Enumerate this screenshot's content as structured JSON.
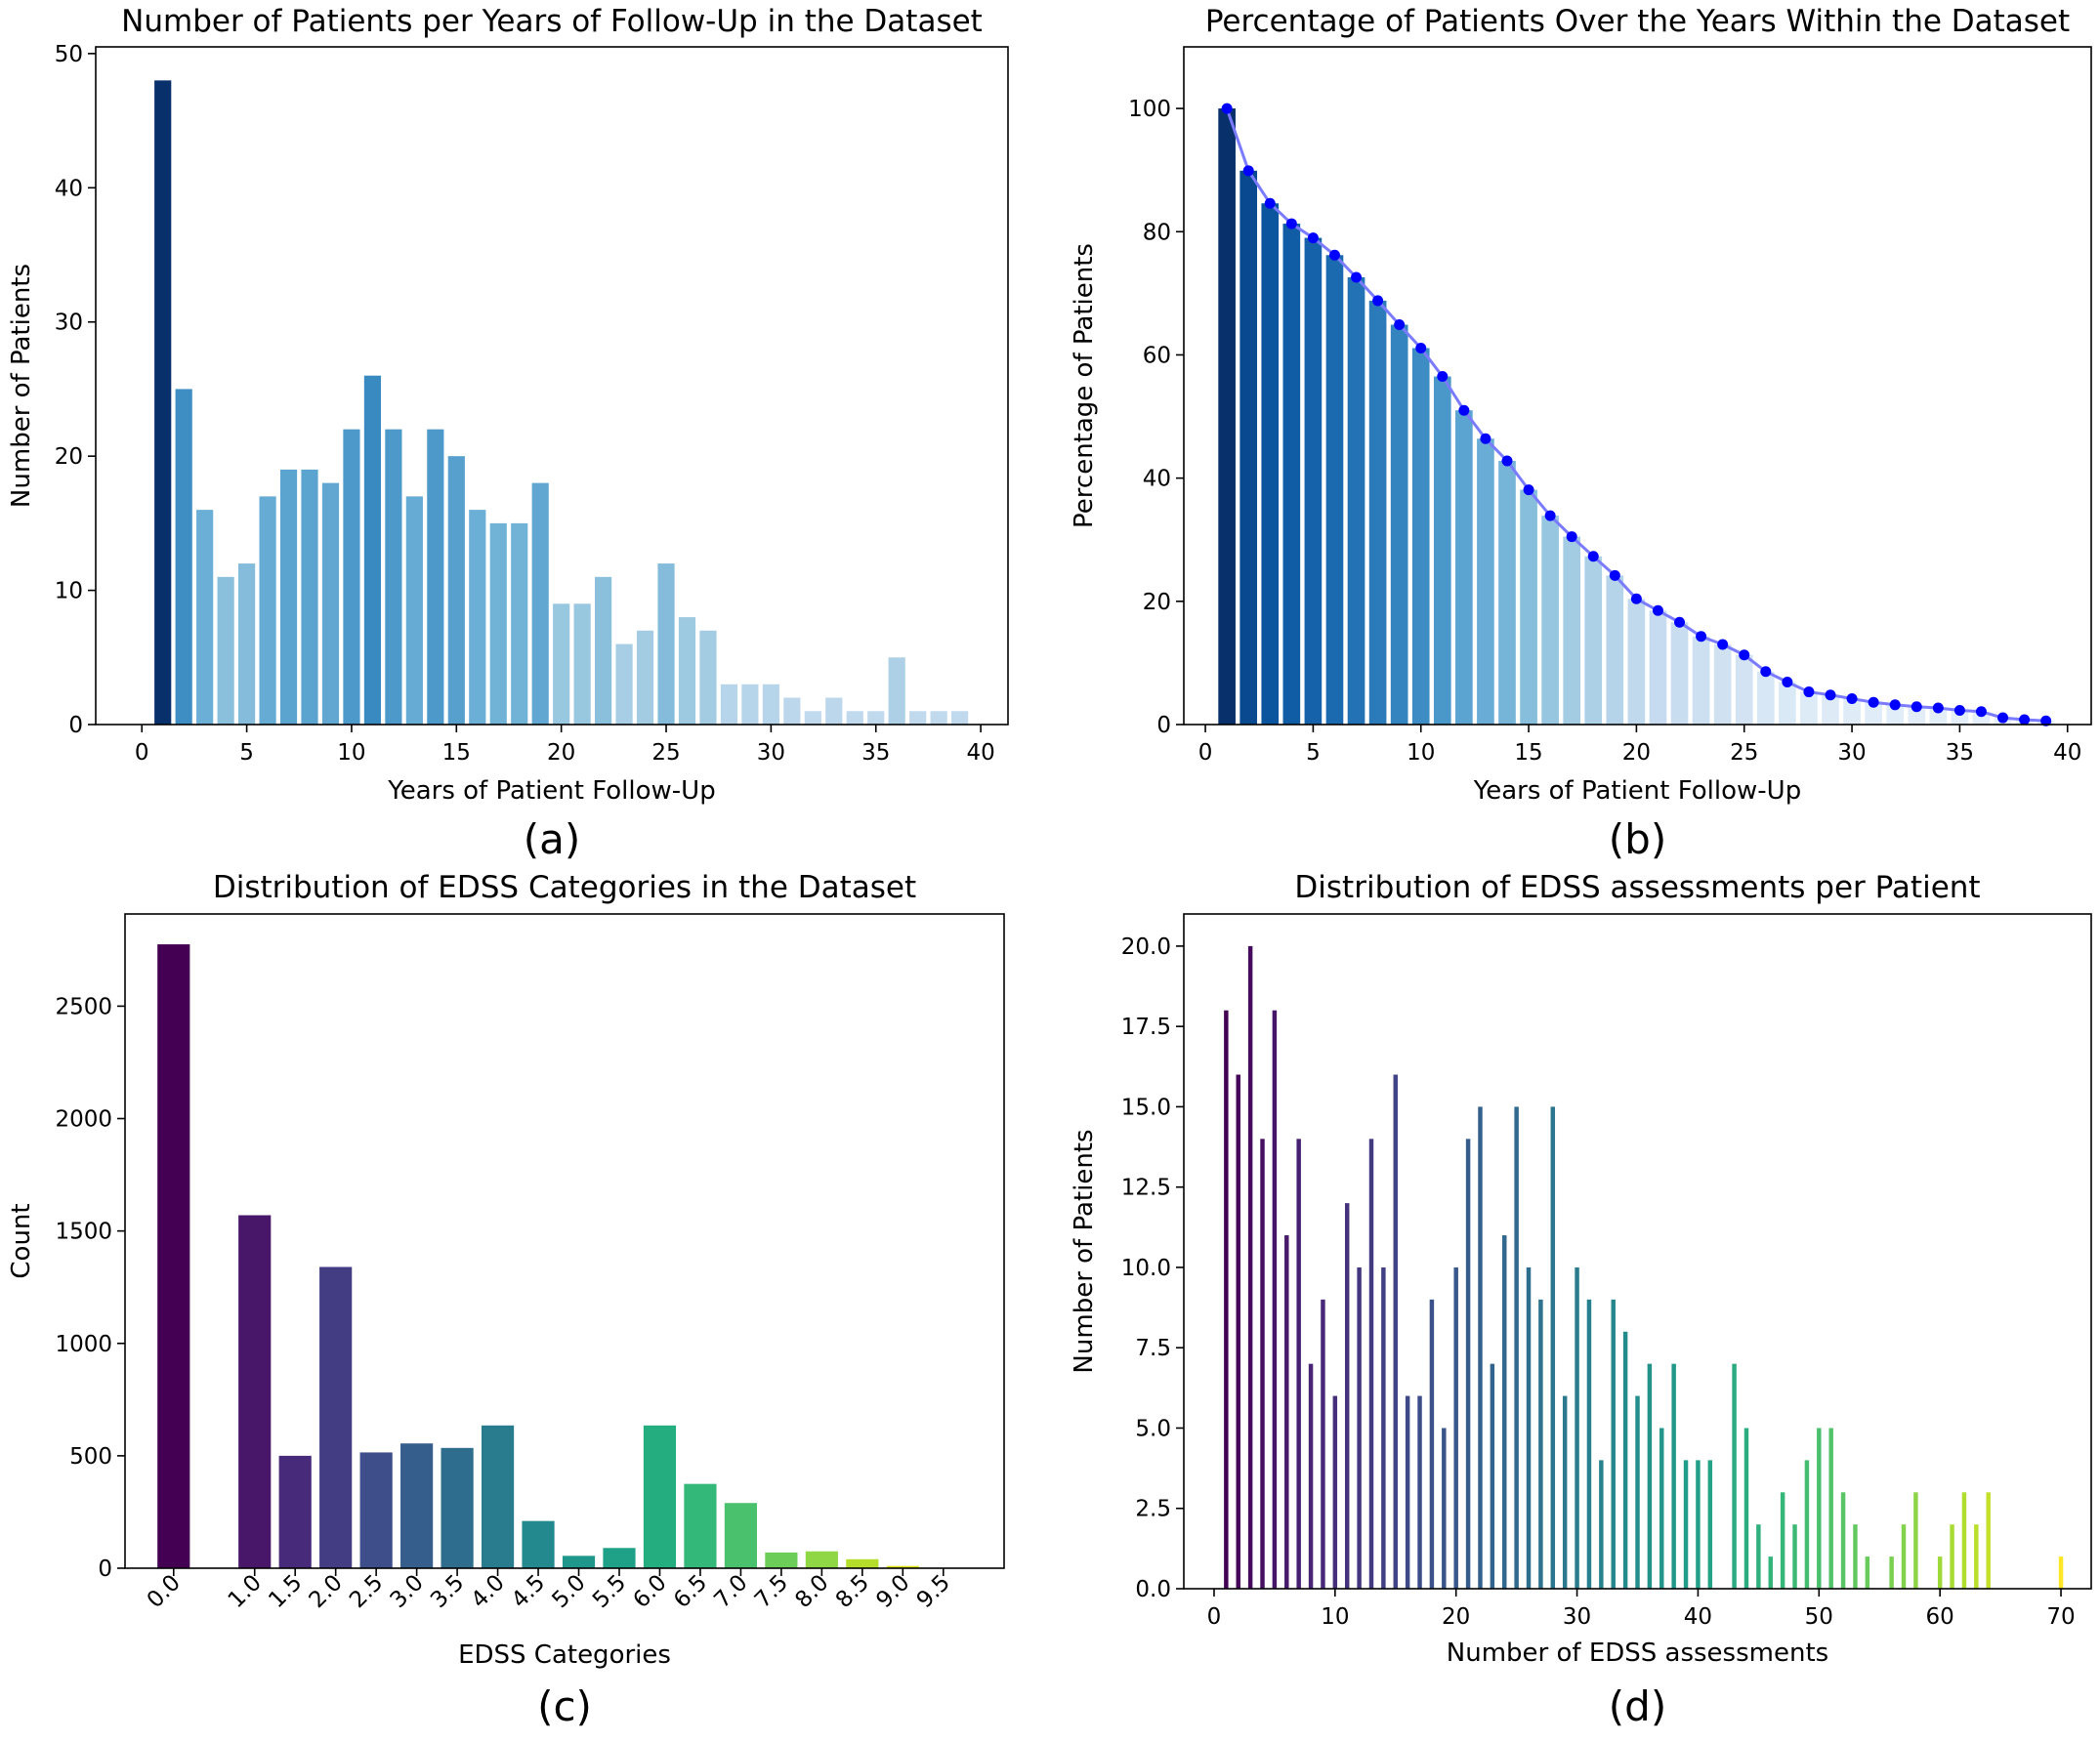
{
  "chart_data": [
    {
      "panel_label": "(a)",
      "type": "bar",
      "title": "Number of Patients per Years of Follow-Up in the Dataset",
      "xlabel": "Years of Patient Follow-Up",
      "ylabel": "Number of Patients",
      "xlim": [
        -2.2,
        41.3
      ],
      "ylim": [
        0,
        50.5
      ],
      "xticks": [
        0,
        5,
        10,
        15,
        20,
        25,
        30,
        35,
        40
      ],
      "yticks": [
        0,
        10,
        20,
        30,
        40,
        50
      ],
      "x": [
        1,
        2,
        3,
        4,
        5,
        6,
        7,
        8,
        9,
        10,
        11,
        12,
        13,
        14,
        15,
        16,
        17,
        18,
        19,
        20,
        21,
        22,
        23,
        24,
        25,
        26,
        27,
        28,
        29,
        30,
        31,
        32,
        33,
        34,
        35,
        36,
        37,
        38,
        39
      ],
      "values": [
        48,
        25,
        16,
        11,
        12,
        17,
        19,
        19,
        18,
        22,
        26,
        22,
        17,
        22,
        20,
        16,
        15,
        15,
        18,
        9,
        9,
        11,
        6,
        7,
        12,
        8,
        7,
        3,
        3,
        3,
        2,
        1,
        2,
        1,
        1,
        5,
        1,
        1,
        1
      ],
      "colormap": "Blues",
      "grid": false
    },
    {
      "panel_label": "(b)",
      "type": "bar",
      "title": "Percentage of Patients Over the Years Within the Dataset",
      "xlabel": "Years of Patient Follow-Up",
      "ylabel": "Percentage of Patients",
      "xlim": [
        -1,
        41.1
      ],
      "ylim": [
        0,
        110
      ],
      "xticks": [
        0,
        5,
        10,
        15,
        20,
        25,
        30,
        35,
        40
      ],
      "yticks": [
        0,
        20,
        40,
        60,
        80,
        100
      ],
      "x": [
        1,
        2,
        3,
        4,
        5,
        6,
        7,
        8,
        9,
        10,
        11,
        12,
        13,
        14,
        15,
        16,
        17,
        18,
        19,
        20,
        21,
        22,
        23,
        24,
        25,
        26,
        27,
        28,
        29,
        30,
        31,
        32,
        33,
        34,
        35,
        36,
        37,
        38,
        39
      ],
      "values": [
        100,
        89.9,
        84.6,
        81.3,
        79,
        76.2,
        72.6,
        68.8,
        64.9,
        61.1,
        56.5,
        51,
        46.4,
        42.8,
        38.1,
        33.9,
        30.5,
        27.3,
        24.2,
        20.4,
        18.5,
        16.6,
        14.3,
        13,
        11.3,
        8.6,
        6.9,
        5.3,
        4.8,
        4.2,
        3.6,
        3.2,
        2.9,
        2.7,
        2.3,
        2.1,
        1.1,
        0.8,
        0.6
      ],
      "colormap": "Blues_r",
      "line_color": "#7b7bff",
      "marker_color": "#0000ff",
      "grid": false
    },
    {
      "panel_label": "(c)",
      "type": "bar",
      "title": "Distribution of EDSS Categories in the Dataset",
      "xlabel": "EDSS Categories",
      "ylabel": "Count",
      "ylim": [
        0,
        2910
      ],
      "yticks": [
        0,
        500,
        1000,
        1500,
        2000,
        2500
      ],
      "categories": [
        "0.0",
        "1.0",
        "1.5",
        "2.0",
        "2.5",
        "3.0",
        "3.5",
        "4.0",
        "4.5",
        "5.0",
        "5.5",
        "6.0",
        "6.5",
        "7.0",
        "7.5",
        "8.0",
        "8.5",
        "9.0",
        "9.5"
      ],
      "values": [
        2775,
        1570,
        500,
        1340,
        515,
        555,
        535,
        635,
        210,
        55,
        90,
        635,
        375,
        290,
        70,
        75,
        40,
        10,
        0
      ],
      "colors": [
        "#440154",
        "#481769",
        "#472a7a",
        "#433d84",
        "#3d4e8a",
        "#355e8d",
        "#2e6d8e",
        "#297b8e",
        "#23898e",
        "#1f978b",
        "#1fa187",
        "#24ae7f",
        "#33b87a",
        "#4ac16d",
        "#6cce59",
        "#8fd744",
        "#b5de2b",
        "#dde318",
        "#fde725"
      ],
      "grid": false
    },
    {
      "panel_label": "(d)",
      "type": "bar",
      "title": "Distribution of EDSS assessments per Patient",
      "xlabel": "Number of EDSS assessments",
      "ylabel": "Number of Patients",
      "xlim": [
        -2.5,
        72.5
      ],
      "ylim": [
        0,
        21
      ],
      "xticks": [
        0,
        10,
        20,
        30,
        40,
        50,
        60,
        70
      ],
      "yticks": [
        "0.0",
        "2.5",
        "5.0",
        "7.5",
        "10.0",
        "12.5",
        "15.0",
        "17.5",
        "20.0"
      ],
      "x": [
        1,
        2,
        3,
        4,
        5,
        6,
        7,
        8,
        9,
        10,
        11,
        12,
        13,
        14,
        15,
        16,
        17,
        18,
        19,
        20,
        21,
        22,
        23,
        24,
        25,
        26,
        27,
        28,
        29,
        30,
        31,
        32,
        33,
        34,
        35,
        36,
        37,
        38,
        39,
        40,
        41,
        43,
        44,
        45,
        46,
        47,
        48,
        49,
        50,
        51,
        52,
        53,
        54,
        56,
        57,
        58,
        60,
        61,
        62,
        63,
        64,
        70
      ],
      "values": [
        18,
        16,
        20,
        14,
        18,
        11,
        14,
        7,
        9,
        6,
        12,
        10,
        14,
        10,
        16,
        6,
        6,
        9,
        5,
        10,
        14,
        15,
        7,
        11,
        15,
        10,
        9,
        15,
        6,
        10,
        9,
        4,
        9,
        8,
        6,
        7,
        5,
        7,
        4,
        4,
        4,
        7,
        5,
        2,
        1,
        3,
        2,
        4,
        5,
        5,
        3,
        2,
        1,
        1,
        2,
        3,
        1,
        2,
        3,
        2,
        3,
        1
      ],
      "colormap": "viridis",
      "grid": false
    }
  ]
}
